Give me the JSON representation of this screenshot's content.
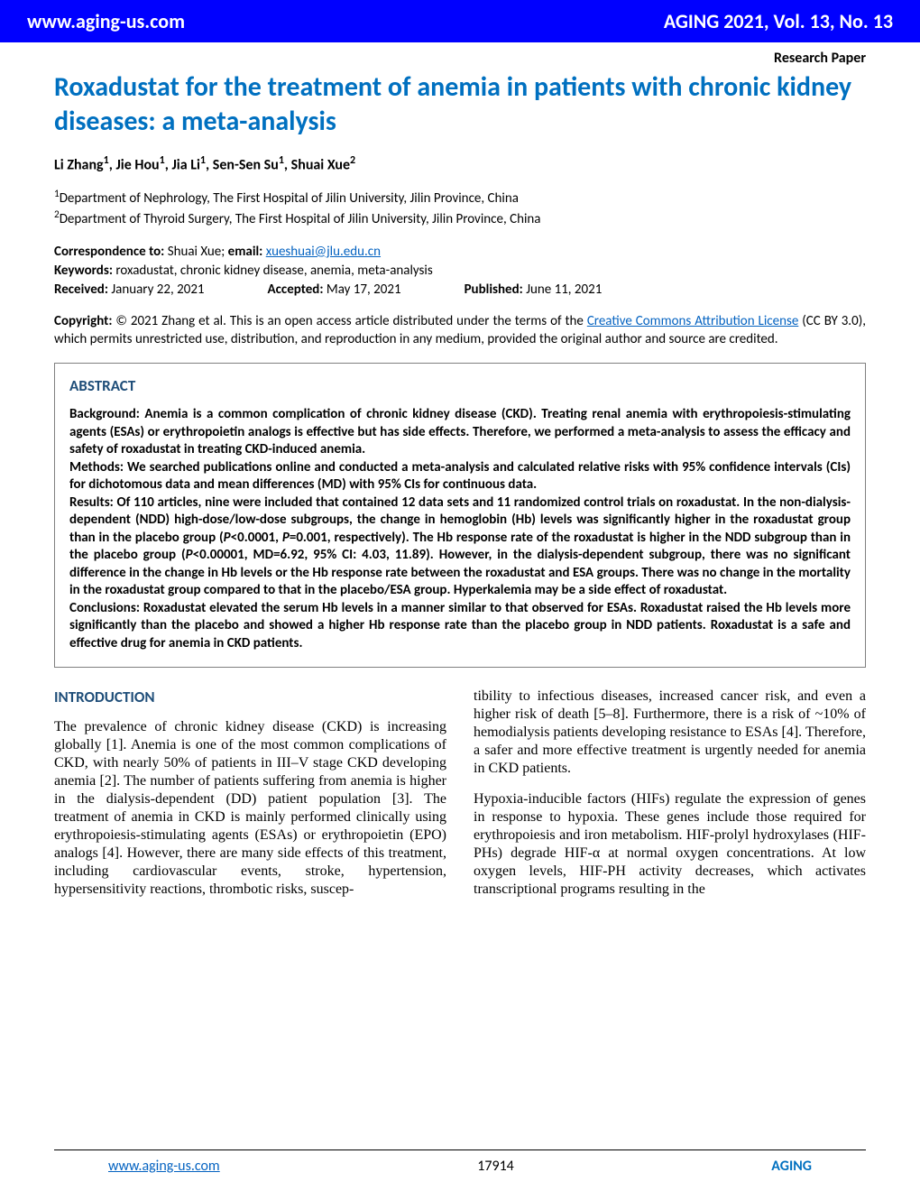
{
  "header": {
    "site": "www.aging-us.com",
    "issue": "AGING 2021, Vol. 13, No. 13",
    "bg_color": "#0000ff",
    "text_color": "#ffffff"
  },
  "label": "Research Paper",
  "title": "Roxadustat for the treatment of anemia in patients with chronic kidney diseases: a meta-analysis",
  "title_color": "#0070c0",
  "authors_html": "Li Zhang<sup>1</sup>, Jie Hou<sup>1</sup>, Jia Li<sup>1</sup>, Sen-Sen Su<sup>1</sup>, Shuai Xue<sup>2</sup>",
  "affiliations": [
    "1Department of Nephrology, The First Hospital of Jilin University, Jilin Province, China",
    "2Department of Thyroid Surgery, The First Hospital of Jilin University, Jilin Province, China"
  ],
  "correspondence": {
    "to_label": "Correspondence to:",
    "to_value": " Shuai Xue; ",
    "email_label": "email:",
    "email_value": "xueshuai@jlu.edu.cn",
    "keywords_label": "Keywords:",
    "keywords_value": " roxadustat, chronic kidney disease, anemia, meta-analysis",
    "received_label": "Received:",
    "received_value": " January 22, 2021",
    "accepted_label": "Accepted:",
    "accepted_value": " May 17, 2021",
    "published_label": "Published:",
    "published_value": " June 11, 2021"
  },
  "copyright": {
    "prefix": "Copyright:",
    "text_before_link": " © 2021 Zhang et al. This is an open access article distributed under the terms of the ",
    "link_text": "Creative Commons Attribution License",
    "text_after_link": " (CC BY 3.0), which permits unrestricted use, distribution, and reproduction in any medium, provided the original author and source are credited."
  },
  "abstract": {
    "heading": "ABSTRACT",
    "heading_color": "#1f4e79",
    "body": "Background: Anemia is a common complication of chronic kidney disease (CKD). Treating renal anemia with erythropoiesis-stimulating agents (ESAs) or erythropoietin analogs is effective but has side effects. Therefore, we performed a meta-analysis to assess the efficacy and safety of roxadustat in treating CKD-induced anemia.\nMethods: We searched publications online and conducted a meta-analysis and calculated relative risks with 95% confidence intervals (CIs) for dichotomous data and mean differences (MD) with 95% CIs for continuous data.\nResults: Of 110 articles, nine were included that contained 12 data sets and 11 randomized control trials on roxadustat. In the non-dialysis-dependent (NDD) high-dose/low-dose subgroups, the change in hemoglobin (Hb) levels was significantly higher in the roxadustat group than in the placebo group (P<0.0001, P=0.001, respectively). The Hb response rate of the roxadustat is higher in the NDD subgroup than in the placebo group (P<0.00001, MD=6.92, 95% CI: 4.03, 11.89). However, in the dialysis-dependent subgroup, there was no significant difference in the change in Hb levels or the Hb response rate between the roxadustat and ESA groups. There was no change in the mortality in the roxadustat group compared to that in the placebo/ESA group. Hyperkalemia may be a side effect of roxadustat.\nConclusions: Roxadustat elevated the serum Hb levels in a manner similar to that observed for ESAs. Roxadustat raised the Hb levels more significantly than the placebo and showed a higher Hb response rate than the placebo group in NDD patients. Roxadustat is a safe and effective drug for anemia in CKD patients."
  },
  "introduction": {
    "heading": "INTRODUCTION",
    "heading_color": "#1f4e79",
    "col1_p1": "The prevalence of chronic kidney disease (CKD) is increasing globally [1]. Anemia is one of the most common complications of CKD, with nearly 50% of patients in III–V stage CKD developing anemia [2]. The number of patients suffering from anemia is higher in the dialysis-dependent (DD) patient population [3]. The treatment of anemia in CKD is mainly performed clinically using erythropoiesis-stimulating agents (ESAs) or erythropoietin (EPO) analogs [4]. However, there are many side effects of this treatment, including cardiovascular events, stroke, hypertension, hypersensitivity reactions, thrombotic risks, suscep-",
    "col2_p1": "tibility to infectious diseases, increased cancer risk, and even a higher risk of death [5–8]. Furthermore, there is a risk of ~10% of hemodialysis patients developing resistance to ESAs [4]. Therefore, a safer and more effective treatment is urgently needed for anemia in CKD patients.",
    "col2_p2": "Hypoxia-inducible factors (HIFs) regulate the expression of genes in response to hypoxia. These genes include those required for erythropoiesis and iron metabolism. HIF-prolyl hydroxylases (HIF-PHs) degrade HIF-α at normal oxygen concentrations. At low oxygen levels, HIF-PH activity decreases, which activates transcriptional programs resulting in the"
  },
  "footer": {
    "site": "www.aging-us.com",
    "page": "17914",
    "journal": "AGING",
    "link_color": "#0563c1",
    "journal_color": "#0070c0"
  }
}
